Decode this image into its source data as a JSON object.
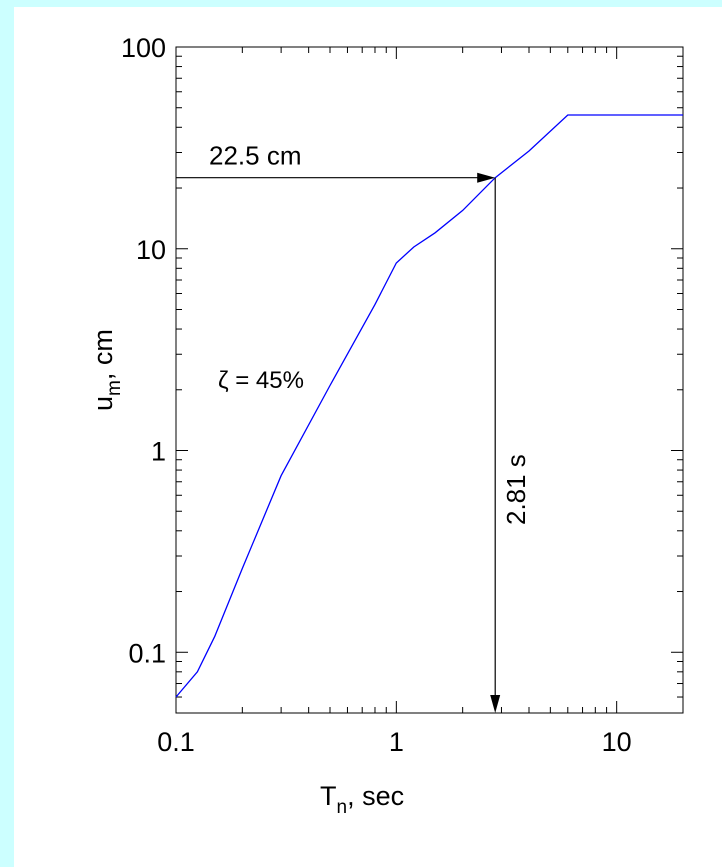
{
  "chart_data": {
    "type": "line",
    "xscale": "log",
    "yscale": "log",
    "xlim": [
      0.1,
      20
    ],
    "ylim": [
      0.05,
      100
    ],
    "xticks": [
      0.1,
      1,
      10
    ],
    "xtick_labels": [
      "0.1",
      "1",
      "10"
    ],
    "yticks": [
      0.1,
      1,
      10,
      100
    ],
    "ytick_labels": [
      "0.1",
      "1",
      "10",
      "100"
    ],
    "xlabel": {
      "main": "T",
      "sub": "n",
      "rest": ", sec"
    },
    "ylabel": {
      "main": "u",
      "sub": "m",
      "rest": ", cm"
    },
    "grid": false,
    "series": [
      {
        "color": "#0000ff",
        "x": [
          0.1,
          0.125,
          0.15,
          0.2,
          0.3,
          0.5,
          0.8,
          1.0,
          1.2,
          1.5,
          2.0,
          2.81,
          4.0,
          6.0,
          20
        ],
        "y": [
          0.06,
          0.08,
          0.12,
          0.26,
          0.75,
          2.1,
          5.3,
          8.5,
          10.2,
          12.0,
          15.5,
          22.5,
          30.5,
          46,
          46
        ]
      }
    ],
    "annotations": {
      "response_label": "22.5 cm",
      "response_value": 22.5,
      "period_label": "2.81 s",
      "period_value": 2.81,
      "damping_label": "ζ = 45%"
    }
  }
}
